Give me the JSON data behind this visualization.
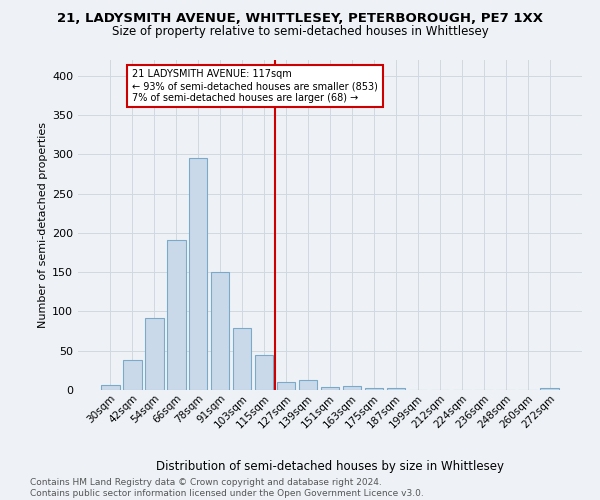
{
  "title": "21, LADYSMITH AVENUE, WHITTLESEY, PETERBOROUGH, PE7 1XX",
  "subtitle": "Size of property relative to semi-detached houses in Whittlesey",
  "xlabel": "Distribution of semi-detached houses by size in Whittlesey",
  "ylabel": "Number of semi-detached properties",
  "footnote1": "Contains HM Land Registry data © Crown copyright and database right 2024.",
  "footnote2": "Contains public sector information licensed under the Open Government Licence v3.0.",
  "bar_labels": [
    "30sqm",
    "42sqm",
    "54sqm",
    "66sqm",
    "78sqm",
    "91sqm",
    "103sqm",
    "115sqm",
    "127sqm",
    "139sqm",
    "151sqm",
    "163sqm",
    "175sqm",
    "187sqm",
    "199sqm",
    "212sqm",
    "224sqm",
    "236sqm",
    "248sqm",
    "260sqm",
    "272sqm"
  ],
  "bar_values": [
    7,
    38,
    92,
    191,
    295,
    150,
    79,
    44,
    10,
    13,
    4,
    5,
    3,
    3,
    0,
    0,
    0,
    0,
    0,
    0,
    3
  ],
  "bar_color": "#c9d9ea",
  "bar_edge_color": "#7baac8",
  "background_color": "#eef2f7",
  "grid_color": "#d0d8e0",
  "vline_x": 7.5,
  "vline_color": "#cc0000",
  "property_label": "21 LADYSMITH AVENUE: 117sqm",
  "stat1": "← 93% of semi-detached houses are smaller (853)",
  "stat2": "7% of semi-detached houses are larger (68) →",
  "ylim": [
    0,
    420
  ],
  "yticks": [
    0,
    50,
    100,
    150,
    200,
    250,
    300,
    350,
    400
  ]
}
